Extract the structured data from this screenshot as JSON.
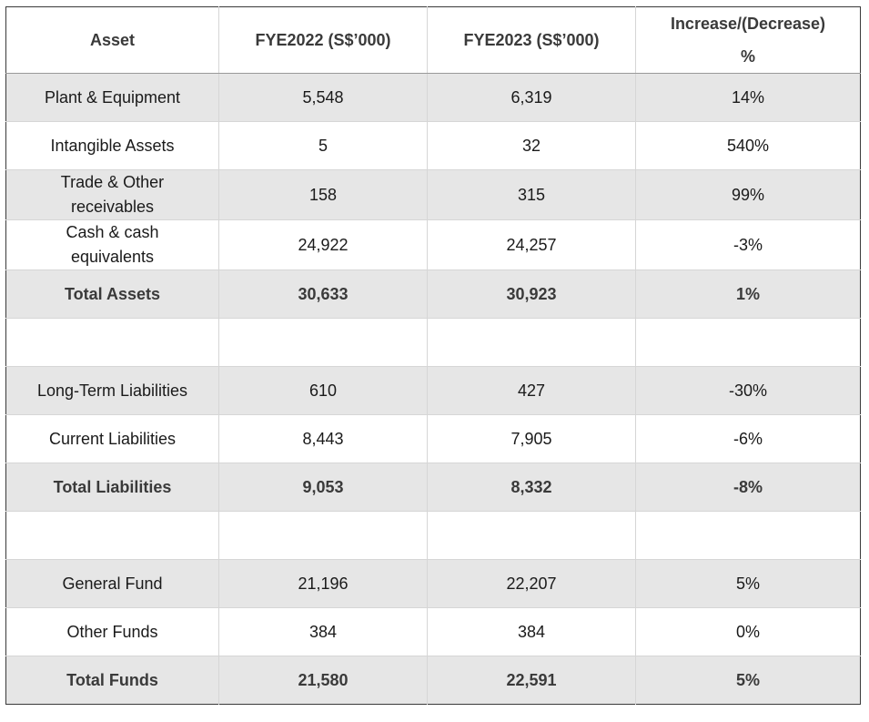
{
  "headers": {
    "asset": "Asset",
    "fye2022": "FYE2022 (S$’000)",
    "fye2023": "FYE2023 (S$’000)",
    "change_line1": "Increase/(Decrease)",
    "change_line2": "%"
  },
  "rows": [
    {
      "label": "Plant & Equipment",
      "fye2022": "5,548",
      "fye2023": "6,319",
      "change": "14%"
    },
    {
      "label_line1": "Intangible Assets",
      "fye2022": "5",
      "fye2023": "32",
      "change": "540%"
    },
    {
      "label_line1": "Trade & Other",
      "label_line2": "receivables",
      "fye2022": "158",
      "fye2023": "315",
      "change": "99%"
    },
    {
      "label_line1": "Cash & cash",
      "label_line2": "equivalents",
      "fye2022": "24,922",
      "fye2023": "24,257",
      "change": "-3%"
    },
    {
      "label": "Total Assets",
      "fye2022": "30,633",
      "fye2023": "30,923",
      "change": "1%"
    },
    {
      "label": "Long-Term Liabilities",
      "fye2022": "610",
      "fye2023": "427",
      "change": "-30%"
    },
    {
      "label": "Current Liabilities",
      "fye2022": "8,443",
      "fye2023": "7,905",
      "change": "-6%"
    },
    {
      "label": "Total Liabilities",
      "fye2022": "9,053",
      "fye2023": "8,332",
      "change": "-8%"
    },
    {
      "label": "General Fund",
      "fye2022": "21,196",
      "fye2023": "22,207",
      "change": "5%"
    },
    {
      "label": "Other Funds",
      "fye2022": "384",
      "fye2023": "384",
      "change": "0%"
    },
    {
      "label": "Total Funds",
      "fye2022": "21,580",
      "fye2023": "22,591",
      "change": "5%"
    }
  ],
  "colors": {
    "shade": "#e6e6e6",
    "border": "#d6d6d6",
    "outer_border": "#3a3a3a"
  }
}
